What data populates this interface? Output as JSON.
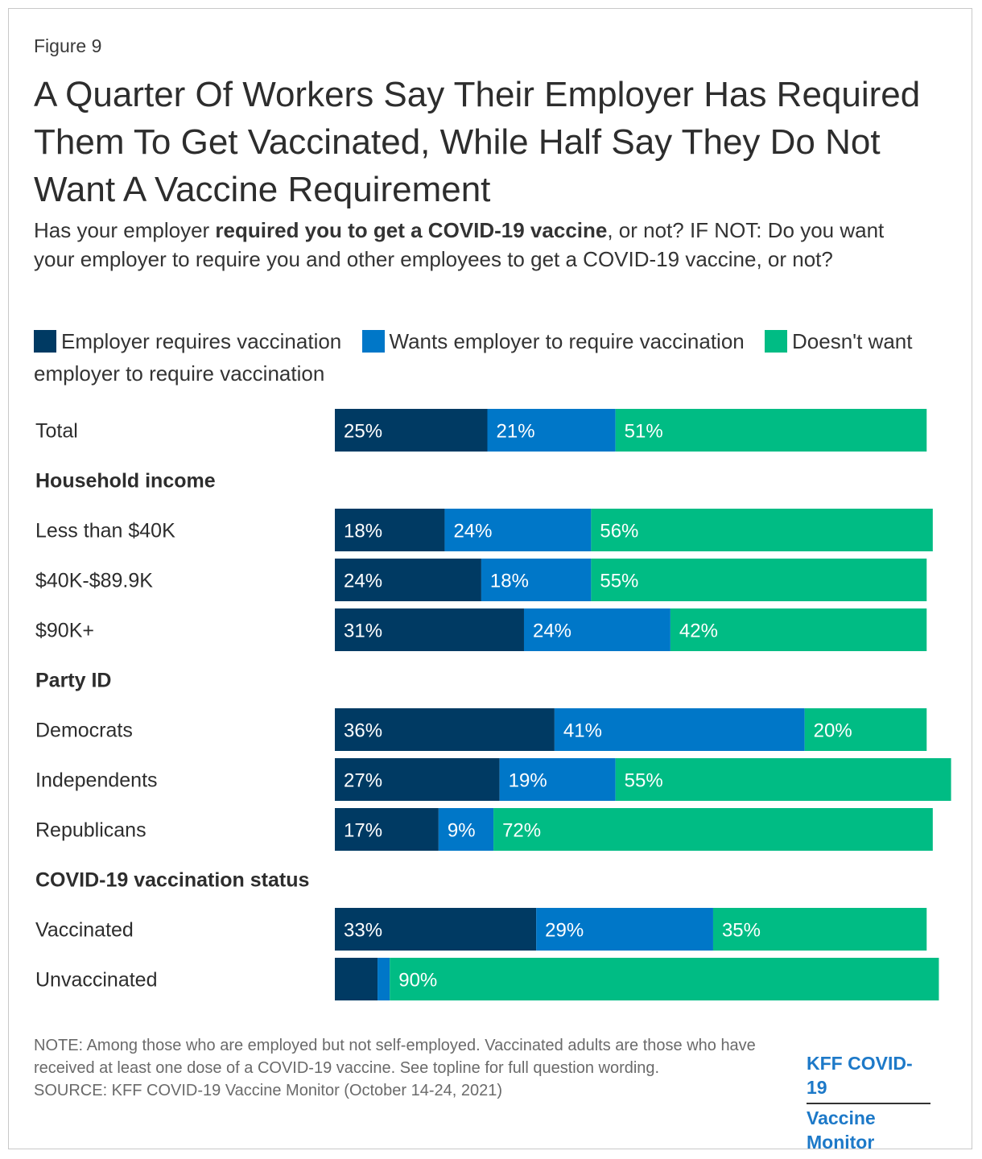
{
  "figure_label": "Figure 9",
  "title": "A Quarter Of Workers Say Their Employer Has Required Them To Get Vaccinated, While Half Say They Do Not Want A Vaccine Requirement",
  "subtitle": {
    "pre": "Has your employer ",
    "bold": "required you to get a COVID-19 vaccine",
    "post": ", or not? IF NOT: Do you want your employer to require you and other employees to get a COVID-19 vaccine, or not?"
  },
  "legend": [
    {
      "label": "Employer requires vaccination",
      "color": "#003a63"
    },
    {
      "label": "Wants employer to require vaccination",
      "color": "#0077c8"
    },
    {
      "label": "Doesn't want employer to require vaccination",
      "color": "#00bc84"
    }
  ],
  "chart_data": {
    "type": "bar",
    "orientation": "horizontal",
    "stacked": true,
    "title": "A Quarter Of Workers Say Their Employer Has Required Them To Get Vaccinated, While Half Say They Do Not Want A Vaccine Requirement",
    "series_names": [
      "Employer requires vaccination",
      "Wants employer to require vaccination",
      "Doesn't want employer to require vaccination"
    ],
    "colors": [
      "#003a63",
      "#0077c8",
      "#00bc84"
    ],
    "rows": [
      {
        "kind": "bar",
        "label": "Total",
        "values": [
          25,
          21,
          51
        ],
        "labels": [
          "25%",
          "21%",
          "51%"
        ]
      },
      {
        "kind": "header",
        "label": "Household income"
      },
      {
        "kind": "bar",
        "label": "Less than $40K",
        "values": [
          18,
          24,
          56
        ],
        "labels": [
          "18%",
          "24%",
          "56%"
        ]
      },
      {
        "kind": "bar",
        "label": "$40K-$89.9K",
        "values": [
          24,
          18,
          55
        ],
        "labels": [
          "24%",
          "18%",
          "55%"
        ]
      },
      {
        "kind": "bar",
        "label": "$90K+",
        "values": [
          31,
          24,
          42
        ],
        "labels": [
          "31%",
          "24%",
          "42%"
        ]
      },
      {
        "kind": "header",
        "label": "Party ID"
      },
      {
        "kind": "bar",
        "label": "Democrats",
        "values": [
          36,
          41,
          20
        ],
        "labels": [
          "36%",
          "41%",
          "20%"
        ]
      },
      {
        "kind": "bar",
        "label": "Independents",
        "values": [
          27,
          19,
          55
        ],
        "labels": [
          "27%",
          "19%",
          "55%"
        ]
      },
      {
        "kind": "bar",
        "label": "Republicans",
        "values": [
          17,
          9,
          72
        ],
        "labels": [
          "17%",
          "9%",
          "72%"
        ]
      },
      {
        "kind": "header",
        "label": "COVID-19 vaccination status"
      },
      {
        "kind": "bar",
        "label": "Vaccinated",
        "values": [
          33,
          29,
          35
        ],
        "labels": [
          "33%",
          "29%",
          "35%"
        ]
      },
      {
        "kind": "bar",
        "label": "Unvaccinated",
        "values": [
          7,
          2,
          90
        ],
        "labels": [
          "",
          "",
          "90%"
        ]
      }
    ],
    "xlim": [
      0,
      100
    ],
    "unit": "%"
  },
  "footnote": {
    "note": "NOTE: Among those who are employed but not self-employed. Vaccinated adults are those who have received at least one dose of a COVID-19 vaccine. See topline for full question wording.",
    "source": "SOURCE: KFF COVID-19 Vaccine Monitor (October 14-24, 2021)"
  },
  "logo": {
    "line1": "KFF COVID-19",
    "line2": "Vaccine Monitor"
  }
}
